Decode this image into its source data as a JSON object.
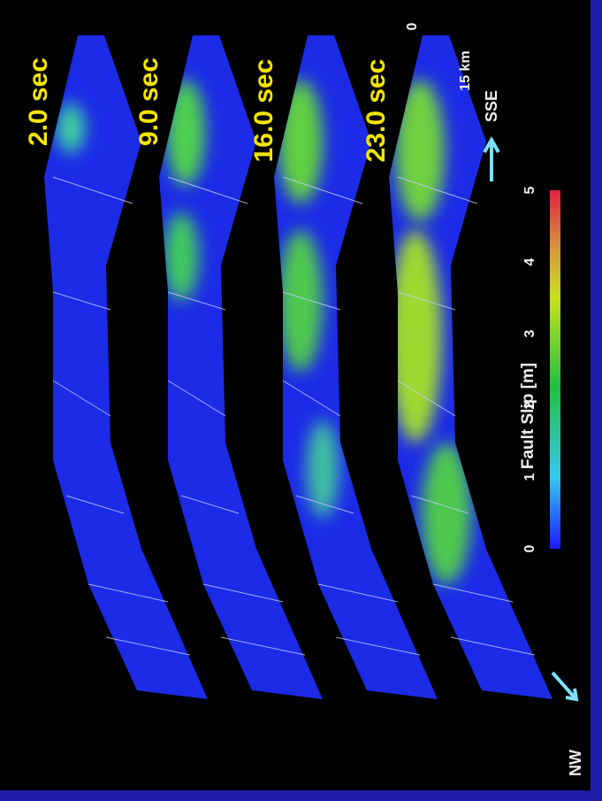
{
  "snapshots": [
    "2.0 sec",
    "9.0 sec",
    "16.0 sec",
    "23.0 sec"
  ],
  "scale_bar": {
    "start": "0",
    "end": "15 km"
  },
  "directions": {
    "left": "NW",
    "right": "SSE"
  },
  "colorbar": {
    "label": "Fault Slip [m]",
    "ticks": [
      0,
      1,
      2,
      3,
      4,
      5
    ]
  }
}
